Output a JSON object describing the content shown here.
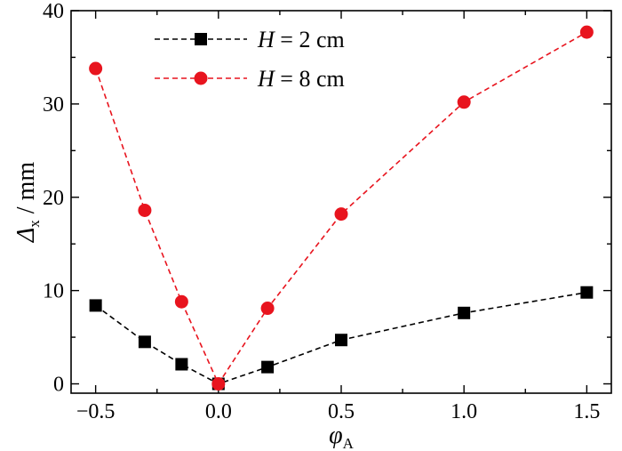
{
  "chart_data": {
    "type": "line",
    "xlabel": {
      "main": "φ",
      "sub": "A"
    },
    "ylabel": {
      "main": "Δ",
      "sub": "x",
      "unit": " / mm"
    },
    "xlim": [
      -0.6,
      1.6
    ],
    "ylim": [
      -1,
      40
    ],
    "xticks": [
      -0.5,
      0.0,
      0.5,
      1.0,
      1.5
    ],
    "xtick_labels": [
      "−0.5",
      "0.0",
      "0.5",
      "1.0",
      "1.5"
    ],
    "yticks": [
      0,
      10,
      20,
      30,
      40
    ],
    "ytick_labels": [
      "0",
      "10",
      "20",
      "30",
      "40"
    ],
    "legend_position": "top-left",
    "series": [
      {
        "name": "H = 2 cm",
        "name_var": "H",
        "name_rest": " = 2 cm",
        "color": "#000000",
        "marker": "square",
        "x": [
          -0.5,
          -0.3,
          -0.15,
          0.0,
          0.2,
          0.5,
          1.0,
          1.5
        ],
        "y": [
          8.4,
          4.5,
          2.1,
          0.0,
          1.8,
          4.7,
          7.6,
          9.8
        ]
      },
      {
        "name": "H = 8 cm",
        "name_var": "H",
        "name_rest": " = 8 cm",
        "color": "#e8141e",
        "marker": "circle",
        "x": [
          -0.5,
          -0.3,
          -0.15,
          0.0,
          0.2,
          0.5,
          1.0,
          1.5
        ],
        "y": [
          33.8,
          18.6,
          8.8,
          0.0,
          8.1,
          18.2,
          30.2,
          37.7
        ]
      }
    ]
  }
}
